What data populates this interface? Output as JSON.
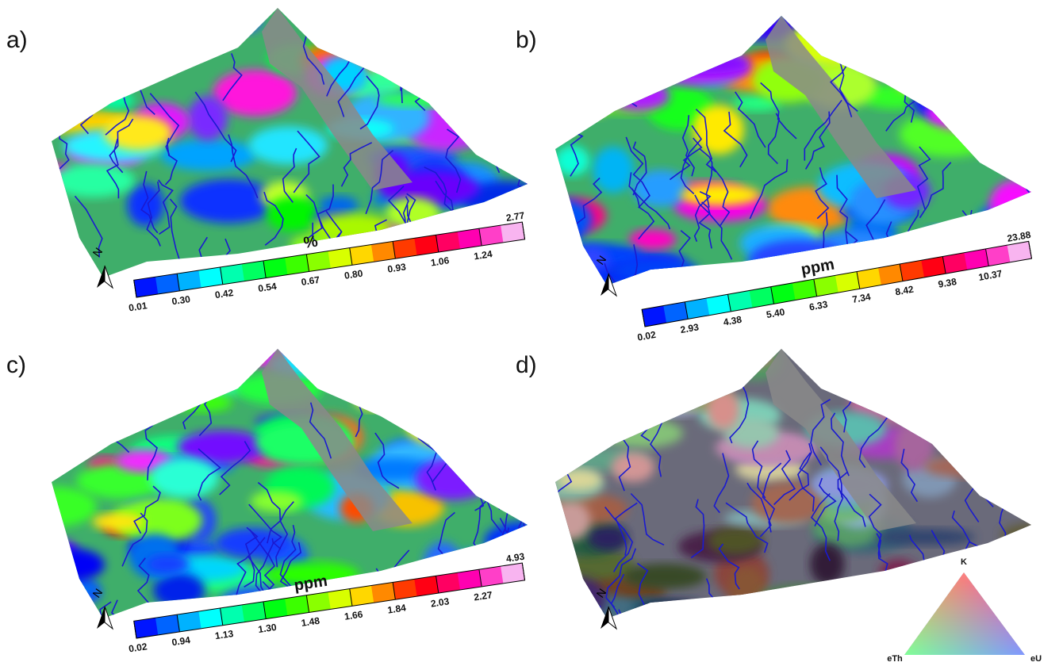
{
  "panels": [
    {
      "label": "a)",
      "unit": "%",
      "ticks": [
        "0.01",
        "0.30",
        "0.42",
        "0.54",
        "0.67",
        "0.80",
        "0.93",
        "1.06",
        "1.24",
        "2.77"
      ]
    },
    {
      "label": "b)",
      "unit": "ppm",
      "ticks": [
        "0.02",
        "2.93",
        "4.38",
        "5.40",
        "6.33",
        "7.34",
        "8.42",
        "9.38",
        "10.37",
        "23.88"
      ]
    },
    {
      "label": "c)",
      "unit": "ppm",
      "ticks": [
        "0.02",
        "0.94",
        "1.13",
        "1.30",
        "1.48",
        "1.66",
        "1.84",
        "2.03",
        "2.27",
        "4.93"
      ]
    },
    {
      "label": "d)"
    }
  ],
  "north": "N",
  "ternary": {
    "top": "K",
    "left": "eTh",
    "right": "eU"
  }
}
